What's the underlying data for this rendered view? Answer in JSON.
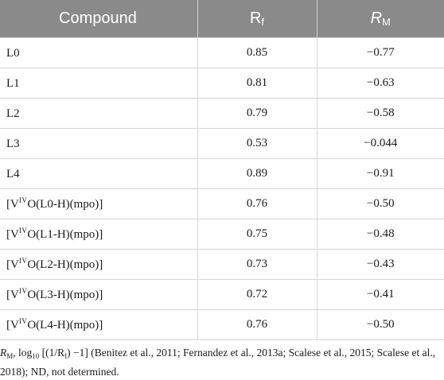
{
  "table": {
    "headers": {
      "compound": "Compound",
      "rf_base": "R",
      "rf_sub": "f",
      "rm_base": "R",
      "rm_sub": "M"
    },
    "rows": [
      {
        "prefix": "L0",
        "sup": "",
        "suffix": "",
        "rf": "0.85",
        "rm": "−0.77"
      },
      {
        "prefix": "L1",
        "sup": "",
        "suffix": "",
        "rf": "0.81",
        "rm": "−0.63"
      },
      {
        "prefix": "L2",
        "sup": "",
        "suffix": "",
        "rf": "0.79",
        "rm": "−0.58"
      },
      {
        "prefix": "L3",
        "sup": "",
        "suffix": "",
        "rf": "0.53",
        "rm": "−0.044"
      },
      {
        "prefix": "L4",
        "sup": "",
        "suffix": "",
        "rf": "0.89",
        "rm": "−0.91"
      },
      {
        "prefix": "[V",
        "sup": "IV",
        "suffix": "O(L0-H)(mpo)]",
        "rf": "0.76",
        "rm": "−0.50"
      },
      {
        "prefix": "[V",
        "sup": "IV",
        "suffix": "O(L1-H)(mpo)]",
        "rf": "0.75",
        "rm": "−0.48"
      },
      {
        "prefix": "[V",
        "sup": "IV",
        "suffix": "O(L2-H)(mpo)]",
        "rf": "0.73",
        "rm": "−0.43"
      },
      {
        "prefix": "[V",
        "sup": "IV",
        "suffix": "O(L3-H)(mpo)]",
        "rf": "0.72",
        "rm": "−0.41"
      },
      {
        "prefix": "[V",
        "sup": "IV",
        "suffix": "O(L4-H)(mpo)]",
        "rf": "0.76",
        "rm": "−0.50"
      }
    ]
  },
  "footnote": {
    "rm_base": "R",
    "rm_sub": "M",
    "sep": ", log",
    "log_sub": "10",
    "formula_a": " [(1/R",
    "formula_sub": "f",
    "formula_b": ") −1] (Benitez et al., 2011; Fernandez et al., 2013a; Scalese et al., 2015; Scalese et al., 2018); ND, not determined."
  }
}
